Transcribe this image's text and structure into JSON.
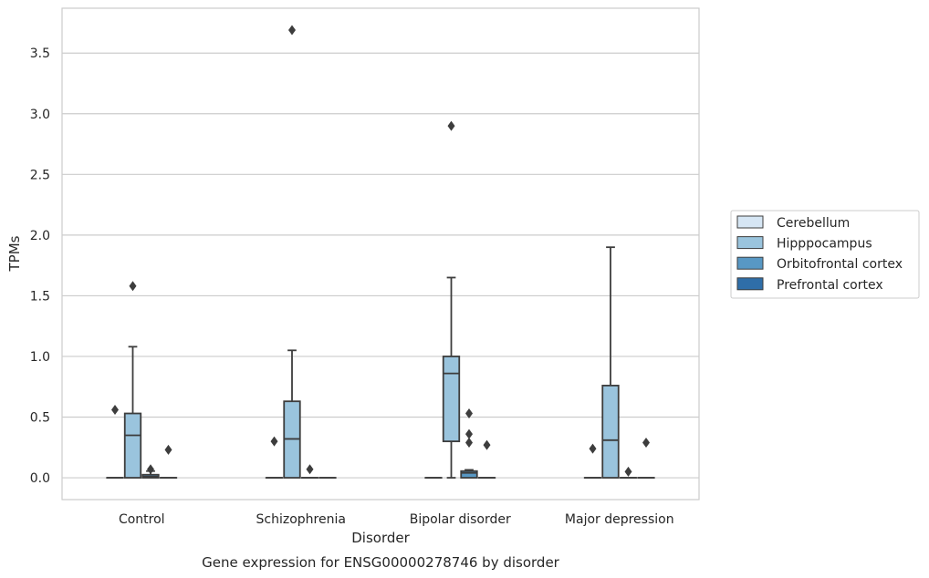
{
  "chart_data": {
    "type": "box",
    "title": "",
    "caption": "Gene expression for ENSG00000278746 by disorder",
    "xlabel": "Disorder",
    "ylabel": "TPMs",
    "ylim": [
      -0.18,
      3.87
    ],
    "yticks": [
      0.0,
      0.5,
      1.0,
      1.5,
      2.0,
      2.5,
      3.0,
      3.5
    ],
    "ytick_labels": [
      "0.0",
      "0.5",
      "1.0",
      "1.5",
      "2.0",
      "2.5",
      "3.0",
      "3.5"
    ],
    "grid": "horizontal",
    "legend_position": "right",
    "categories": [
      "Control",
      "Schizophrenia",
      "Bipolar disorder",
      "Major depression"
    ],
    "series": [
      {
        "name": "Cerebellum",
        "color": "#d6e6f4",
        "boxes": [
          {
            "q1": 0,
            "median": 0,
            "q3": 0,
            "whisker_low": 0,
            "whisker_high": 0,
            "outliers": [
              0.56
            ]
          },
          {
            "q1": 0,
            "median": 0,
            "q3": 0,
            "whisker_low": 0,
            "whisker_high": 0,
            "outliers": [
              0.3
            ]
          },
          {
            "q1": 0,
            "median": 0,
            "q3": 0,
            "whisker_low": 0,
            "whisker_high": 0,
            "outliers": []
          },
          {
            "q1": 0,
            "median": 0,
            "q3": 0,
            "whisker_low": 0,
            "whisker_high": 0,
            "outliers": [
              0.24
            ]
          }
        ]
      },
      {
        "name": "Hipppocampus",
        "color": "#9ac4dd",
        "boxes": [
          {
            "q1": 0,
            "median": 0.35,
            "q3": 0.53,
            "whisker_low": 0,
            "whisker_high": 1.08,
            "outliers": [
              1.58
            ]
          },
          {
            "q1": 0,
            "median": 0.32,
            "q3": 0.63,
            "whisker_low": 0,
            "whisker_high": 1.05,
            "outliers": [
              3.69
            ]
          },
          {
            "q1": 0.3,
            "median": 0.86,
            "q3": 1.0,
            "whisker_low": 0,
            "whisker_high": 1.65,
            "outliers": [
              2.9
            ]
          },
          {
            "q1": 0,
            "median": 0.31,
            "q3": 0.76,
            "whisker_low": 0,
            "whisker_high": 1.9,
            "outliers": []
          }
        ]
      },
      {
        "name": "Orbitofrontal cortex",
        "color": "#5898c4",
        "boxes": [
          {
            "q1": 0,
            "median": 0.01,
            "q3": 0.025,
            "whisker_low": 0,
            "whisker_high": 0.055,
            "outliers": [
              0.07
            ]
          },
          {
            "q1": 0,
            "median": 0,
            "q3": 0,
            "whisker_low": 0,
            "whisker_high": 0,
            "outliers": [
              0.07
            ]
          },
          {
            "q1": 0,
            "median": 0.04,
            "q3": 0.055,
            "whisker_low": 0,
            "whisker_high": 0.065,
            "outliers": [
              0.53,
              0.36,
              0.29
            ]
          },
          {
            "q1": 0,
            "median": 0,
            "q3": 0,
            "whisker_low": 0,
            "whisker_high": 0,
            "outliers": [
              0.05
            ]
          }
        ]
      },
      {
        "name": "Prefrontal cortex",
        "color": "#2f6ea8",
        "boxes": [
          {
            "q1": 0,
            "median": 0,
            "q3": 0,
            "whisker_low": 0,
            "whisker_high": 0,
            "outliers": [
              0.23
            ]
          },
          {
            "q1": 0,
            "median": 0,
            "q3": 0,
            "whisker_low": 0,
            "whisker_high": 0,
            "outliers": []
          },
          {
            "q1": 0,
            "median": 0,
            "q3": 0,
            "whisker_low": 0,
            "whisker_high": 0,
            "outliers": [
              0.27
            ]
          },
          {
            "q1": 0,
            "median": 0,
            "q3": 0,
            "whisker_low": 0,
            "whisker_high": 0,
            "outliers": [
              0.29
            ]
          }
        ]
      }
    ]
  }
}
